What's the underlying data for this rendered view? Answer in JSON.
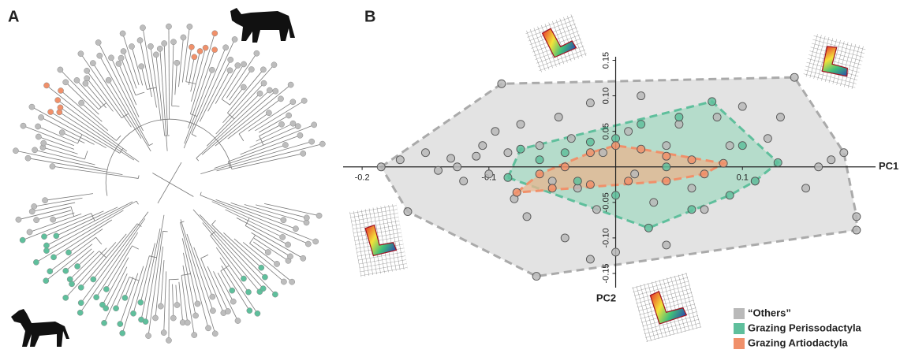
{
  "panel_labels": [
    "A",
    "B"
  ],
  "chart_data": {
    "type": "scatter",
    "xlabel": "PC1",
    "ylabel": "PC2",
    "xlim": [
      -0.215,
      0.205
    ],
    "ylim": [
      -0.17,
      0.155
    ],
    "xticks": [
      -0.2,
      -0.1,
      0.1
    ],
    "yticks": [
      0.15,
      {
        "value": 0.1,
        "label": "0.10"
      },
      0.05,
      -0.05,
      {
        "value": -0.1,
        "label": "-0.10"
      },
      -0.15
    ],
    "legend": "bottom-right",
    "series": [
      {
        "name": "“Others”",
        "color": "#b9b9b9",
        "hull_color": "#e3e3e3",
        "x": [
          -0.185,
          -0.17,
          -0.164,
          -0.15,
          -0.14,
          -0.13,
          -0.125,
          -0.12,
          -0.11,
          -0.105,
          -0.1,
          -0.095,
          -0.09,
          -0.085,
          -0.08,
          -0.075,
          -0.07,
          -0.0625,
          -0.06,
          -0.05,
          -0.045,
          -0.04,
          -0.035,
          -0.03,
          -0.02,
          -0.015,
          -0.01,
          0.0,
          0.01,
          0.015,
          0.02,
          0.03,
          0.04,
          0.05,
          0.06,
          0.07,
          0.08,
          0.09,
          0.1,
          0.11,
          0.12,
          0.141,
          0.15,
          0.16,
          0.17,
          0.18,
          0.19,
          0.19,
          0.13,
          -0.02,
          0.04
        ],
        "values": [
          0.0,
          0.01,
          -0.063,
          0.02,
          -0.005,
          0.012,
          0.0,
          -0.02,
          0.015,
          0.03,
          -0.01,
          0.05,
          0.117,
          0.02,
          -0.045,
          0.06,
          -0.07,
          -0.154,
          0.03,
          -0.02,
          0.07,
          -0.1,
          0.04,
          -0.03,
          0.09,
          -0.06,
          0.02,
          -0.12,
          0.05,
          -0.01,
          0.1,
          -0.05,
          0.03,
          0.06,
          -0.03,
          -0.06,
          0.07,
          0.03,
          0.085,
          -0.02,
          0.04,
          0.126,
          -0.03,
          0.0,
          0.01,
          0.02,
          -0.089,
          -0.07,
          0.07,
          -0.13,
          -0.11
        ]
      },
      {
        "name": "Grazing Perissodactyla",
        "color": "#5fbf9c",
        "hull_color": "#a6d9c3",
        "x": [
          -0.075,
          -0.06,
          -0.04,
          -0.02,
          0.0,
          0.02,
          0.05,
          0.076,
          0.1,
          0.128,
          0.11,
          0.09,
          0.06,
          0.026,
          0.0,
          -0.03,
          -0.085,
          0.04
        ],
        "values": [
          0.025,
          0.01,
          0.02,
          0.035,
          0.04,
          0.06,
          0.07,
          0.092,
          0.03,
          0.006,
          -0.02,
          -0.04,
          -0.06,
          -0.086,
          -0.04,
          -0.02,
          -0.015,
          0.0
        ]
      },
      {
        "name": "Grazing Artiodactyla",
        "color": "#f0906a",
        "hull_color": "#e8b58f",
        "x": [
          -0.078,
          -0.06,
          -0.04,
          -0.02,
          0.0,
          0.02,
          0.04,
          0.06,
          0.085,
          0.07,
          0.04,
          0.01,
          -0.02,
          -0.05
        ],
        "values": [
          -0.036,
          -0.01,
          0.0,
          0.02,
          0.03,
          0.025,
          0.015,
          0.01,
          0.005,
          -0.01,
          -0.02,
          -0.02,
          -0.025,
          -0.03
        ]
      }
    ]
  }
}
